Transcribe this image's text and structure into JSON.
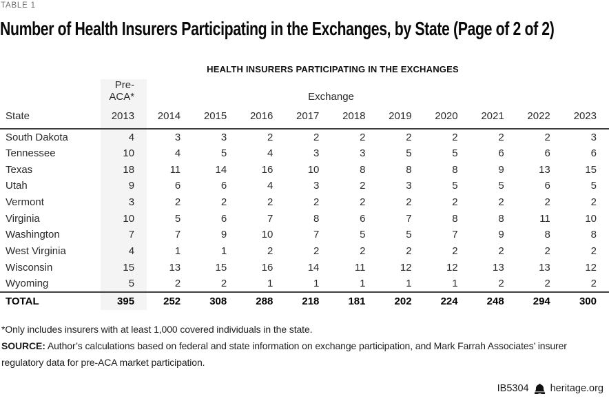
{
  "page": {
    "table_label": "TABLE 1",
    "title": "Number of Health Insurers Participating in the Exchanges, by State (Page of 2 of 2)",
    "subtitle": "HEALTH INSURERS PARTICIPATING IN THE EXCHANGES"
  },
  "table": {
    "group_headers": {
      "pre_aca": "Pre-ACA*",
      "exchange": "Exchange"
    },
    "columns": [
      "State",
      "2013",
      "2014",
      "2015",
      "2016",
      "2017",
      "2018",
      "2019",
      "2020",
      "2021",
      "2022",
      "2023"
    ],
    "rows": [
      {
        "state": "South Dakota",
        "values": [
          4,
          3,
          3,
          2,
          2,
          2,
          2,
          2,
          2,
          2,
          3
        ]
      },
      {
        "state": "Tennessee",
        "values": [
          10,
          4,
          5,
          4,
          3,
          3,
          5,
          5,
          6,
          6,
          6
        ]
      },
      {
        "state": "Texas",
        "values": [
          18,
          11,
          14,
          16,
          10,
          8,
          8,
          8,
          9,
          13,
          15
        ]
      },
      {
        "state": "Utah",
        "values": [
          9,
          6,
          6,
          4,
          3,
          2,
          3,
          5,
          5,
          6,
          5
        ]
      },
      {
        "state": "Vermont",
        "values": [
          3,
          2,
          2,
          2,
          2,
          2,
          2,
          2,
          2,
          2,
          2
        ]
      },
      {
        "state": "Virginia",
        "values": [
          10,
          5,
          6,
          7,
          8,
          6,
          7,
          8,
          8,
          11,
          10
        ]
      },
      {
        "state": "Washington",
        "values": [
          7,
          7,
          9,
          10,
          7,
          5,
          5,
          7,
          9,
          8,
          8
        ]
      },
      {
        "state": "West Virginia",
        "values": [
          4,
          1,
          1,
          2,
          2,
          2,
          2,
          2,
          2,
          2,
          2
        ]
      },
      {
        "state": "Wisconsin",
        "values": [
          15,
          13,
          15,
          16,
          14,
          11,
          12,
          12,
          13,
          13,
          12
        ]
      },
      {
        "state": "Wyoming",
        "values": [
          5,
          2,
          2,
          1,
          1,
          1,
          1,
          1,
          2,
          2,
          2
        ]
      }
    ],
    "total": {
      "label": "TOTAL",
      "values": [
        395,
        252,
        308,
        288,
        218,
        181,
        202,
        224,
        248,
        294,
        300
      ]
    }
  },
  "notes": {
    "footnote": "*Only includes insurers with at least 1,000 covered individuals in the state.",
    "source_label": "SOURCE:",
    "source_text": " Author’s calculations based on federal and state information on exchange participation, and Mark Farrah Associates’ insurer regulatory data for pre-ACA market participation."
  },
  "footer": {
    "doc_id": "IB5304",
    "site": "heritage.org",
    "icon": "liberty-bell-icon"
  },
  "colors": {
    "shade_column": "#f4f4f4",
    "rule": "#3f3f3f",
    "title_text": "#0a0a0a",
    "body_text": "#2a2a2a",
    "label_text": "#6b6b6b"
  }
}
